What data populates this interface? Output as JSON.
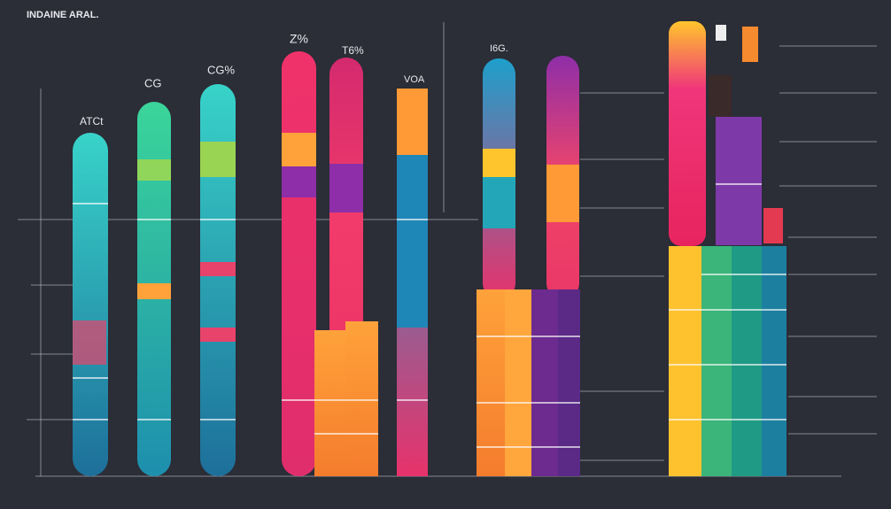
{
  "header": {
    "title": "INDAINE ARAL."
  },
  "labels": [
    "Z%",
    "T6%",
    "CG%",
    "CG",
    "ATCt",
    "I6G.",
    "VOA"
  ]
}
